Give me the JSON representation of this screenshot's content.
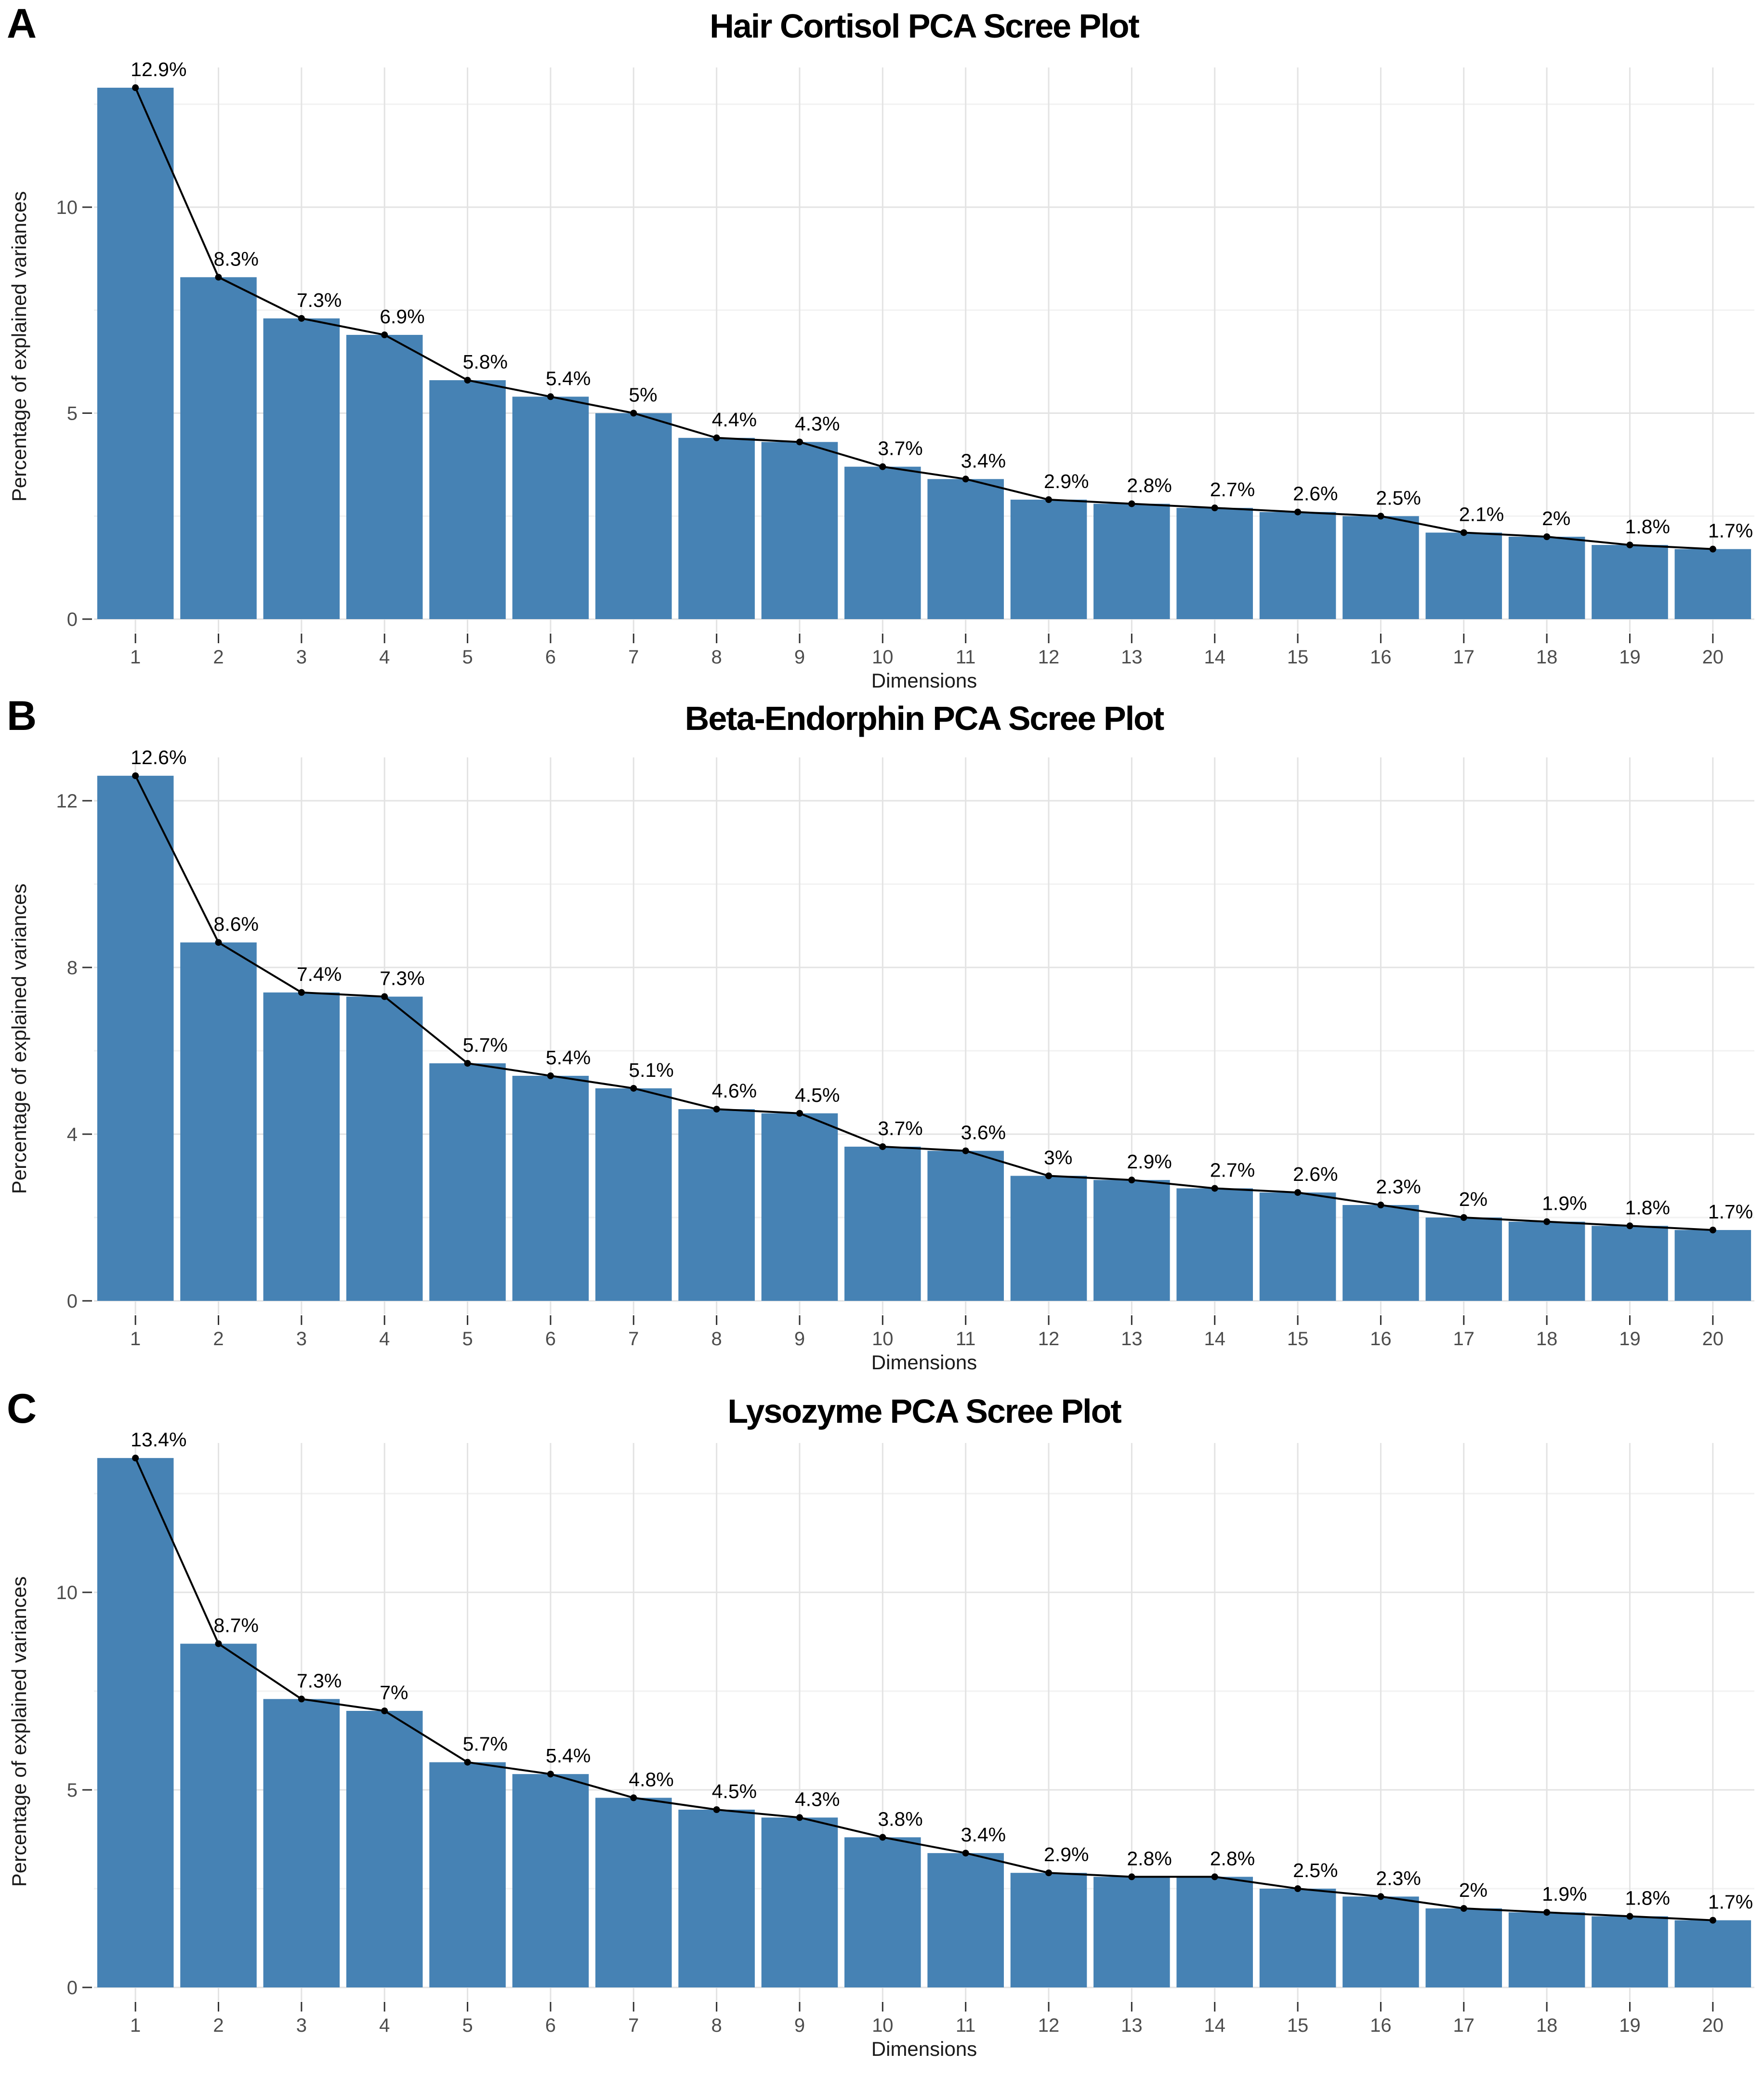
{
  "figure": {
    "panel_labels": [
      "A",
      "B",
      "C"
    ]
  },
  "colors": {
    "bar_fill": "#4682B4",
    "line": "#000000",
    "point": "#000000",
    "point_label_text": "#000000",
    "grid_major": "#E3E3E3",
    "grid_minor": "#F2F2F2",
    "axis_tick": "#333333",
    "tick_label_text": "#4D4D4D",
    "background": "#FFFFFF"
  },
  "chart_data": [
    {
      "type": "bar",
      "overlay": "line",
      "title": "Hair Cortisol PCA Scree Plot",
      "xlabel": "Dimensions",
      "ylabel": "Percentage of explained variances",
      "categories": [
        1,
        2,
        3,
        4,
        5,
        6,
        7,
        8,
        9,
        10,
        11,
        12,
        13,
        14,
        15,
        16,
        17,
        18,
        19,
        20
      ],
      "values": [
        12.9,
        8.3,
        7.3,
        6.9,
        5.8,
        5.4,
        5.0,
        4.4,
        4.3,
        3.7,
        3.4,
        2.9,
        2.8,
        2.7,
        2.6,
        2.5,
        2.1,
        2.0,
        1.8,
        1.7
      ],
      "point_labels": [
        "12.9%",
        "8.3%",
        "7.3%",
        "6.9%",
        "5.8%",
        "5.4%",
        "5%",
        "4.4%",
        "4.3%",
        "3.7%",
        "3.4%",
        "2.9%",
        "2.8%",
        "2.7%",
        "2.6%",
        "2.5%",
        "2.1%",
        "2%",
        "1.8%",
        "1.7%"
      ],
      "y_ticks": [
        0,
        5,
        10
      ],
      "y_minor_ticks": [
        2.5,
        7.5,
        12.5
      ],
      "ylim": [
        0,
        13.5
      ],
      "grid": true,
      "legend": "none"
    },
    {
      "type": "bar",
      "overlay": "line",
      "title": "Beta-Endorphin PCA Scree Plot",
      "xlabel": "Dimensions",
      "ylabel": "Percentage of explained variances",
      "categories": [
        1,
        2,
        3,
        4,
        5,
        6,
        7,
        8,
        9,
        10,
        11,
        12,
        13,
        14,
        15,
        16,
        17,
        18,
        19,
        20
      ],
      "values": [
        12.6,
        8.6,
        7.4,
        7.3,
        5.7,
        5.4,
        5.1,
        4.6,
        4.5,
        3.7,
        3.6,
        3.0,
        2.9,
        2.7,
        2.6,
        2.3,
        2.0,
        1.9,
        1.8,
        1.7
      ],
      "point_labels": [
        "12.6%",
        "8.6%",
        "7.4%",
        "7.3%",
        "5.7%",
        "5.4%",
        "5.1%",
        "4.6%",
        "4.5%",
        "3.7%",
        "3.6%",
        "3%",
        "2.9%",
        "2.7%",
        "2.6%",
        "2.3%",
        "2%",
        "1.9%",
        "1.8%",
        "1.7%"
      ],
      "y_ticks": [
        0,
        4,
        8,
        12
      ],
      "y_minor_ticks": [
        2,
        6,
        10
      ],
      "ylim": [
        0,
        13.2
      ],
      "grid": true,
      "legend": "none"
    },
    {
      "type": "bar",
      "overlay": "line",
      "title": "Lysozyme PCA Scree Plot",
      "xlabel": "Dimensions",
      "ylabel": "Percentage of explained variances",
      "categories": [
        1,
        2,
        3,
        4,
        5,
        6,
        7,
        8,
        9,
        10,
        11,
        12,
        13,
        14,
        15,
        16,
        17,
        18,
        19,
        20
      ],
      "values": [
        13.4,
        8.7,
        7.3,
        7.0,
        5.7,
        5.4,
        4.8,
        4.5,
        4.3,
        3.8,
        3.4,
        2.9,
        2.8,
        2.8,
        2.5,
        2.3,
        2.0,
        1.9,
        1.8,
        1.7
      ],
      "point_labels": [
        "13.4%",
        "8.7%",
        "7.3%",
        "7%",
        "5.7%",
        "5.4%",
        "4.8%",
        "4.5%",
        "4.3%",
        "3.8%",
        "3.4%",
        "2.9%",
        "2.8%",
        "2.8%",
        "2.5%",
        "2.3%",
        "2%",
        "1.9%",
        "1.8%",
        "1.7%"
      ],
      "y_ticks": [
        0,
        5,
        10
      ],
      "y_minor_ticks": [
        2.5,
        7.5,
        12.5
      ],
      "ylim": [
        0,
        14.1
      ],
      "grid": true,
      "legend": "none"
    }
  ]
}
